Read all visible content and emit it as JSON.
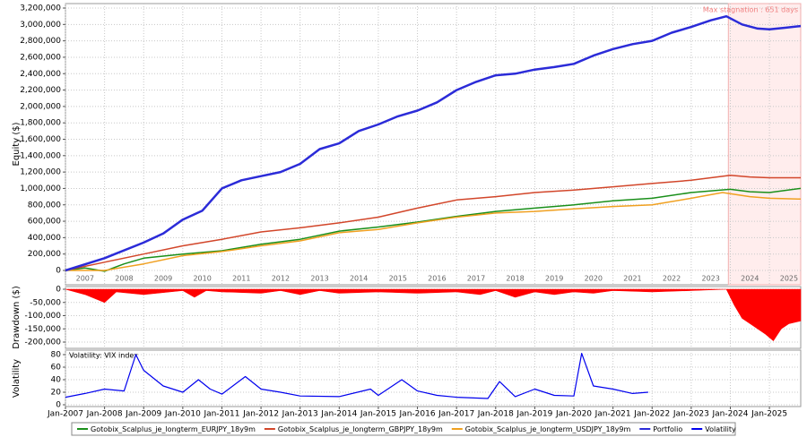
{
  "chart_data": [
    {
      "type": "line",
      "ylabel": "Equity ($)",
      "annotation": "Max stagnation : 651 days",
      "stagnation": [
        2023.95,
        2025.8
      ],
      "xlim": [
        2007,
        2025.8
      ],
      "ylim": [
        0,
        3200000
      ],
      "yticks": [
        0,
        {
          "value": 200000,
          "label": "200,000"
        },
        {
          "value": 400000,
          "label": "400,000"
        },
        {
          "value": 600000,
          "label": "600,000"
        },
        {
          "value": 800000,
          "label": "800,000"
        },
        {
          "value": 1000000,
          "label": "1,000,000"
        },
        {
          "value": 1200000,
          "label": "1,200,000"
        },
        {
          "value": 1400000,
          "label": "1,400,000"
        },
        {
          "value": 1600000,
          "label": "1,600,000"
        },
        {
          "value": 1800000,
          "label": "1,800,000"
        },
        {
          "value": 2000000,
          "label": "2,000,000"
        },
        {
          "value": 2200000,
          "label": "2,200,000"
        },
        {
          "value": 2400000,
          "label": "2,400,000"
        },
        {
          "value": 2600000,
          "label": "2,600,000"
        },
        {
          "value": 2800000,
          "label": "2,800,000"
        },
        {
          "value": 3000000,
          "label": "3,000,000"
        },
        {
          "value": 3200000,
          "label": "3,200,000"
        }
      ],
      "year_labels": [
        "2007",
        "2008",
        "2009",
        "2010",
        "2011",
        "2012",
        "2013",
        "2014",
        "2015",
        "2016",
        "2017",
        "2018",
        "2019",
        "2020",
        "2021",
        "2022",
        "2023",
        "2024",
        "2025"
      ],
      "grid": true,
      "series": [
        {
          "name": "Gotobix_Scalplus_je_longterm_EURJPY_18y9m",
          "color": "#1a8f1a",
          "width": 1.5,
          "x": [
            2007,
            2007.5,
            2008,
            2008.5,
            2009,
            2010,
            2011,
            2012,
            2013,
            2014,
            2015,
            2016,
            2017,
            2018,
            2019,
            2020,
            2021,
            2022,
            2023,
            2024,
            2024.5,
            2025,
            2025.8
          ],
          "values": [
            0,
            30000,
            -10000,
            80000,
            150000,
            200000,
            240000,
            320000,
            380000,
            480000,
            530000,
            590000,
            660000,
            720000,
            760000,
            800000,
            850000,
            880000,
            950000,
            990000,
            960000,
            950000,
            1000000
          ]
        },
        {
          "name": "Gotobix_Scalplus_je_longterm_GBPJPY_18y9m",
          "color": "#d2462a",
          "width": 1.5,
          "x": [
            2007,
            2008,
            2009,
            2010,
            2011,
            2012,
            2013,
            2014,
            2015,
            2016,
            2017,
            2018,
            2019,
            2020,
            2021,
            2022,
            2023,
            2024,
            2024.5,
            2025,
            2025.8
          ],
          "values": [
            0,
            100000,
            200000,
            300000,
            380000,
            470000,
            520000,
            580000,
            650000,
            760000,
            860000,
            900000,
            950000,
            980000,
            1020000,
            1060000,
            1100000,
            1160000,
            1140000,
            1130000,
            1130000
          ]
        },
        {
          "name": "Gotobix_Scalplus_je_longterm_USDJPY_18y9m",
          "color": "#f0a020",
          "width": 1.5,
          "x": [
            2007,
            2008,
            2009,
            2010,
            2011,
            2012,
            2013,
            2014,
            2015,
            2016,
            2017,
            2018,
            2019,
            2020,
            2021,
            2022,
            2023,
            2023.8,
            2024.5,
            2025,
            2025.8
          ],
          "values": [
            0,
            0,
            80000,
            180000,
            230000,
            300000,
            360000,
            460000,
            500000,
            580000,
            650000,
            700000,
            720000,
            750000,
            780000,
            800000,
            880000,
            950000,
            900000,
            880000,
            870000
          ]
        },
        {
          "name": "Portfolio",
          "color": "#2b2bd8",
          "width": 2.5,
          "x": [
            2007,
            2008,
            2009,
            2009.5,
            2010,
            2010.5,
            2011,
            2011.5,
            2012,
            2012.5,
            2013,
            2013.5,
            2014,
            2014.5,
            2015,
            2015.5,
            2016,
            2016.5,
            2017,
            2017.5,
            2018,
            2018.5,
            2019,
            2019.5,
            2020,
            2020.5,
            2021,
            2021.5,
            2022,
            2022.5,
            2023,
            2023.5,
            2023.9,
            2024.3,
            2024.7,
            2025,
            2025.4,
            2025.8
          ],
          "values": [
            0,
            150000,
            340000,
            450000,
            620000,
            730000,
            1000000,
            1100000,
            1150000,
            1200000,
            1300000,
            1480000,
            1550000,
            1700000,
            1780000,
            1880000,
            1950000,
            2050000,
            2200000,
            2300000,
            2380000,
            2400000,
            2450000,
            2480000,
            2520000,
            2620000,
            2700000,
            2760000,
            2800000,
            2900000,
            2970000,
            3050000,
            3100000,
            3000000,
            2950000,
            2940000,
            2960000,
            2980000
          ]
        }
      ]
    },
    {
      "type": "area",
      "ylabel": "Drawdown ($)",
      "color": "#ff0000",
      "xlim": [
        2007,
        2025.8
      ],
      "ylim": [
        -200000,
        0
      ],
      "yticks": [
        0,
        {
          "value": -50000,
          "label": "-50,000"
        },
        {
          "value": -100000,
          "label": "-100,000"
        },
        {
          "value": -150000,
          "label": "-150,000"
        },
        {
          "value": -200000,
          "label": "-200,000"
        }
      ],
      "grid": true,
      "x": [
        2007,
        2007.5,
        2008,
        2008.3,
        2009,
        2010,
        2010.3,
        2010.6,
        2011,
        2012,
        2012.5,
        2013,
        2013.5,
        2014,
        2015,
        2016,
        2017,
        2017.6,
        2018,
        2018.5,
        2019,
        2019.5,
        2020,
        2020.5,
        2021,
        2022,
        2023,
        2023.9,
        2024.1,
        2024.3,
        2024.6,
        2024.9,
        2025.1,
        2025.3,
        2025.5,
        2025.8
      ],
      "values": [
        0,
        -20000,
        -50000,
        -10000,
        -20000,
        -5000,
        -30000,
        -5000,
        -10000,
        -15000,
        -5000,
        -20000,
        -5000,
        -15000,
        -10000,
        -15000,
        -10000,
        -20000,
        -5000,
        -30000,
        -10000,
        -20000,
        -10000,
        -15000,
        -5000,
        -10000,
        -5000,
        0,
        -60000,
        -110000,
        -140000,
        -170000,
        -195000,
        -150000,
        -130000,
        -120000
      ]
    },
    {
      "type": "line",
      "ylabel": "Volatility",
      "annotation": "Volatility: VIX index",
      "xlim": [
        2007,
        2025.8
      ],
      "ylim": [
        0,
        80
      ],
      "yticks": [
        0,
        20,
        40,
        60,
        80
      ],
      "grid": true,
      "xticks": [
        {
          "value": 2007,
          "label": "Jan-2007"
        },
        {
          "value": 2008,
          "label": "Jan-2008"
        },
        {
          "value": 2009,
          "label": "Jan-2009"
        },
        {
          "value": 2010,
          "label": "Jan-2010"
        },
        {
          "value": 2011,
          "label": "Jan-2011"
        },
        {
          "value": 2012,
          "label": "Jan-2012"
        },
        {
          "value": 2013,
          "label": "Jan-2013"
        },
        {
          "value": 2014,
          "label": "Jan-2014"
        },
        {
          "value": 2015,
          "label": "Jan-2015"
        },
        {
          "value": 2016,
          "label": "Jan-2016"
        },
        {
          "value": 2017,
          "label": "Jan-2017"
        },
        {
          "value": 2018,
          "label": "Jan-2018"
        },
        {
          "value": 2019,
          "label": "Jan-2019"
        },
        {
          "value": 2020,
          "label": "Jan-2020"
        },
        {
          "value": 2021,
          "label": "Jan-2021"
        },
        {
          "value": 2022,
          "label": "Jan-2022"
        },
        {
          "value": 2023,
          "label": "Jan-2023"
        },
        {
          "value": 2024,
          "label": "Jan-2024"
        },
        {
          "value": 2025,
          "label": "Jan-2025"
        }
      ],
      "series": [
        {
          "name": "Volatility",
          "color": "#0000ee",
          "width": 1.2,
          "x": [
            2007,
            2007.5,
            2008,
            2008.5,
            2008.8,
            2009,
            2009.5,
            2010,
            2010.4,
            2010.7,
            2011,
            2011.6,
            2012,
            2012.5,
            2013,
            2014,
            2014.8,
            2015,
            2015.6,
            2016,
            2016.5,
            2017,
            2017.8,
            2018.1,
            2018.5,
            2019,
            2019.5,
            2020,
            2020.2,
            2020.5,
            2021,
            2021.5,
            2021.9
          ],
          "values": [
            12,
            18,
            25,
            22,
            80,
            55,
            30,
            20,
            40,
            25,
            17,
            45,
            25,
            20,
            14,
            13,
            25,
            15,
            40,
            22,
            15,
            12,
            10,
            37,
            13,
            25,
            15,
            14,
            82,
            30,
            25,
            18,
            20
          ]
        }
      ]
    }
  ]
}
